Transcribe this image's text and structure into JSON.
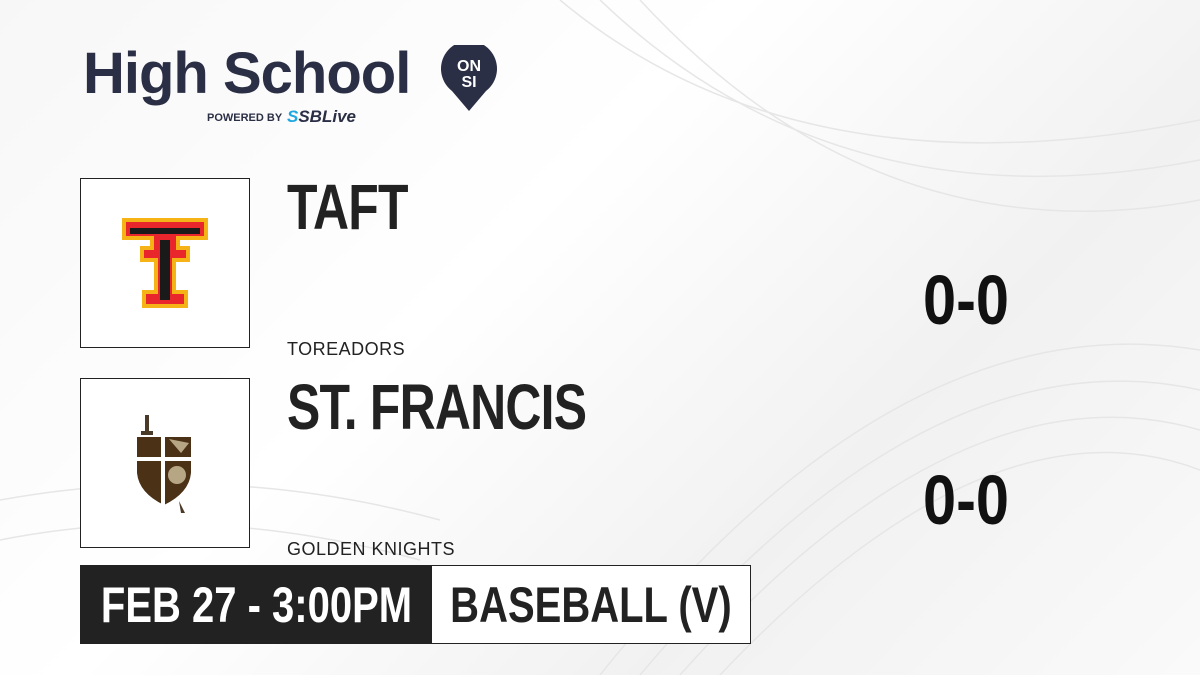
{
  "brand": {
    "title": "High School",
    "badge_top": "ON",
    "badge_bottom": "SI",
    "powered_by": "POWERED BY",
    "partner_prefix": "S",
    "partner": "SBLive",
    "colors": {
      "navy": "#2b2f45",
      "partner_blue": "#1fa8e0"
    }
  },
  "teams": [
    {
      "name": "TAFT",
      "mascot": "TOREADORS",
      "score": "0-0",
      "logo": "double-t-logo"
    },
    {
      "name": "ST. FRANCIS",
      "mascot": "GOLDEN KNIGHTS",
      "score": "0-0",
      "logo": "knight-shield-logo"
    }
  ],
  "game": {
    "datetime": "FEB 27 - 3:00PM",
    "sport": "BASEBALL (V)"
  }
}
